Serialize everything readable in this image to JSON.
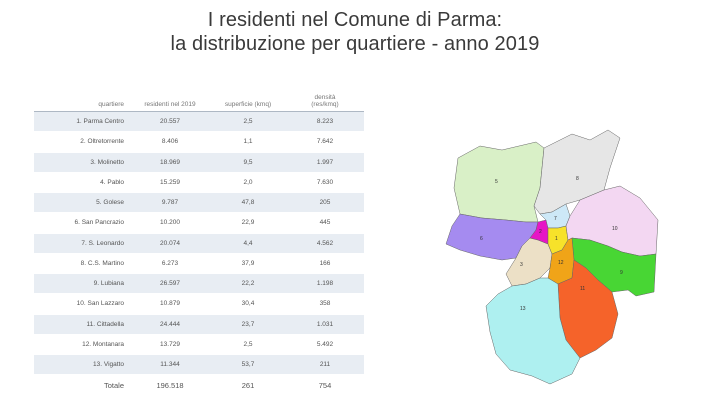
{
  "title": {
    "line1": "I residenti nel Comune di Parma:",
    "line2": "la distribuzione per quartiere - anno 2019"
  },
  "table": {
    "headers": {
      "quartiere": "quartiere",
      "residenti": "residenti nel 2019",
      "superficie": "superficie (kmq)",
      "densita_line1": "densità",
      "densita_line2": "(res/kmq)"
    },
    "rows": [
      {
        "name": "1. Parma Centro",
        "residenti": "20.557",
        "superficie": "2,5",
        "densita": "8.223"
      },
      {
        "name": "2. Oltretorrente",
        "residenti": "8.406",
        "superficie": "1,1",
        "densita": "7.642"
      },
      {
        "name": "3. Molinetto",
        "residenti": "18.969",
        "superficie": "9,5",
        "densita": "1.997"
      },
      {
        "name": "4. Pablo",
        "residenti": "15.259",
        "superficie": "2,0",
        "densita": "7.630"
      },
      {
        "name": "5. Golese",
        "residenti": "9.787",
        "superficie": "47,8",
        "densita": "205"
      },
      {
        "name": "6. San Pancrazio",
        "residenti": "10.200",
        "superficie": "22,9",
        "densita": "445"
      },
      {
        "name": "7. S. Leonardo",
        "residenti": "20.074",
        "superficie": "4,4",
        "densita": "4.562"
      },
      {
        "name": "8. C.S. Martino",
        "residenti": "6.273",
        "superficie": "37,9",
        "densita": "166"
      },
      {
        "name": "9. Lubiana",
        "residenti": "26.597",
        "superficie": "22,2",
        "densita": "1.198"
      },
      {
        "name": "10. San Lazzaro",
        "residenti": "10.879",
        "superficie": "30,4",
        "densita": "358"
      },
      {
        "name": "11. Cittadella",
        "residenti": "24.444",
        "superficie": "23,7",
        "densita": "1.031"
      },
      {
        "name": "12. Montanara",
        "residenti": "13.729",
        "superficie": "2,5",
        "densita": "5.492"
      },
      {
        "name": "13. Vigatto",
        "residenti": "11.344",
        "superficie": "53,7",
        "densita": "211"
      }
    ],
    "total": {
      "name": "Totale",
      "residenti": "196.518",
      "superficie": "261",
      "densita": "754"
    }
  },
  "map": {
    "districts": [
      {
        "label": "1",
        "color": "#f7e22a"
      },
      {
        "label": "2",
        "color": "#e616c6"
      },
      {
        "label": "3",
        "color": "#ece0c6"
      },
      {
        "label": "4",
        "color": "#b79cf2"
      },
      {
        "label": "5",
        "color": "#d9f0c7"
      },
      {
        "label": "6",
        "color": "#a58bf0"
      },
      {
        "label": "7",
        "color": "#cde8f7"
      },
      {
        "label": "8",
        "color": "#e6e6e6"
      },
      {
        "label": "9",
        "color": "#48d634"
      },
      {
        "label": "10",
        "color": "#f3d7f2"
      },
      {
        "label": "11",
        "color": "#f5632a"
      },
      {
        "label": "12",
        "color": "#f0a418"
      },
      {
        "label": "13",
        "color": "#aef0f0"
      }
    ]
  }
}
